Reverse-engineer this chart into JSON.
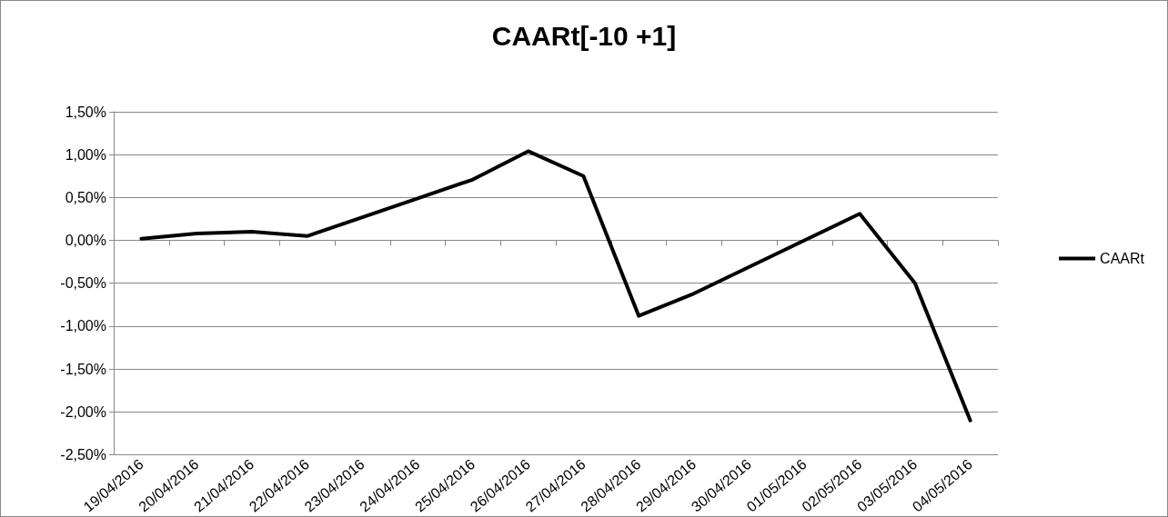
{
  "chart_data": {
    "type": "line",
    "title": "CAARt[-10 +1]",
    "categories": [
      "19/04/2016",
      "20/04/2016",
      "21/04/2016",
      "22/04/2016",
      "23/04/2016",
      "24/04/2016",
      "25/04/2016",
      "26/04/2016",
      "27/04/2016",
      "28/04/2016",
      "29/04/2016",
      "30/04/2016",
      "01/05/2016",
      "02/05/2016",
      "03/05/2016",
      "04/05/2016"
    ],
    "series": [
      {
        "name": "CAARt",
        "color": "#000000",
        "values": [
          0.02,
          0.08,
          0.1,
          0.05,
          0.27,
          0.49,
          0.71,
          1.04,
          0.75,
          -0.88,
          -0.62,
          -0.31,
          0.0,
          0.31,
          -0.5,
          -2.1
        ]
      }
    ],
    "ylim": [
      -2.5,
      1.5
    ],
    "yticks": [
      {
        "value": -2.5,
        "label": "-2,50%"
      },
      {
        "value": -2,
        "label": "-2,00%"
      },
      {
        "value": -1.5,
        "label": "-1,50%"
      },
      {
        "value": -1,
        "label": "-1,00%"
      },
      {
        "value": -0.5,
        "label": "-0,50%"
      },
      {
        "value": 0,
        "label": "0,00%"
      },
      {
        "value": 0.5,
        "label": "0,50%"
      },
      {
        "value": 1,
        "label": "1,00%"
      },
      {
        "value": 1.5,
        "label": "1,50%"
      }
    ],
    "grid": "y",
    "legend": "right",
    "marker": "none",
    "line_style": "solid"
  }
}
